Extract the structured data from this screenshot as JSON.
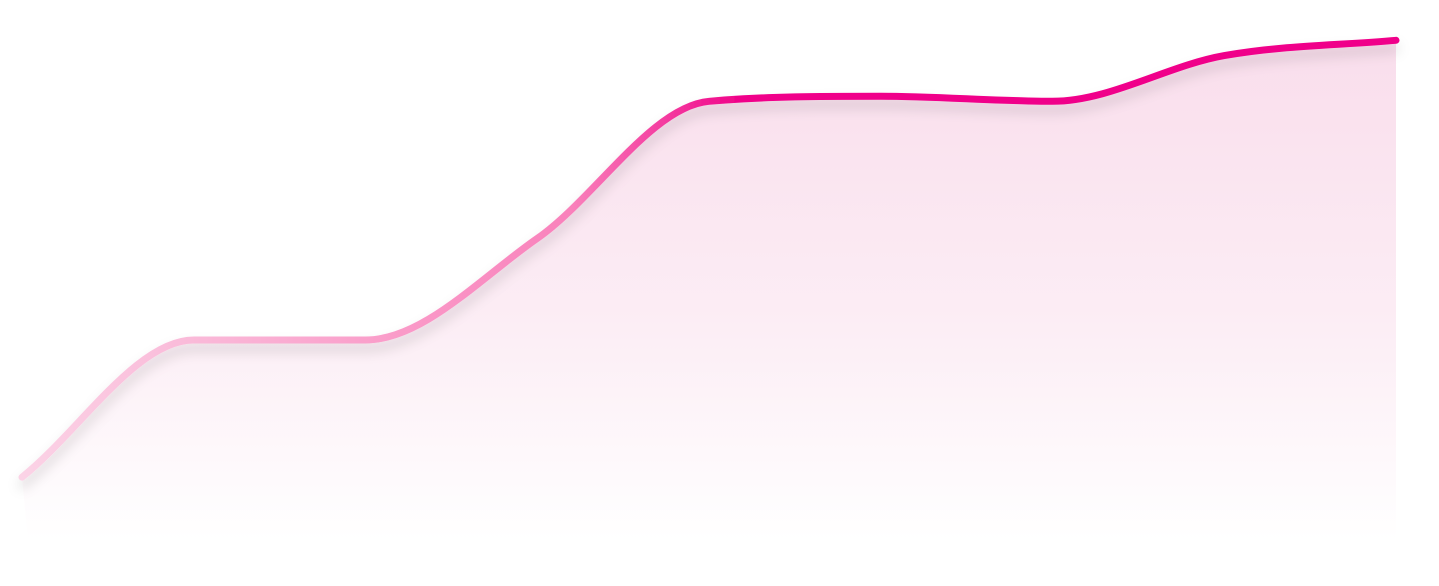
{
  "chart_data": {
    "type": "area",
    "x": [
      0,
      1,
      2,
      3,
      4,
      5,
      6,
      7,
      8
    ],
    "series": [
      {
        "values": [
          10,
          37,
          37,
          57,
          84,
          85,
          84,
          93,
          96
        ]
      }
    ],
    "ylim": [
      0,
      100
    ],
    "grid": false,
    "axes_visible": false,
    "curve": "smooth",
    "line_color_start": "#fbd3e6",
    "line_color_mid": "#f981bb",
    "line_color_end": "#f0058a",
    "fill_color": "#f4c2dc"
  }
}
